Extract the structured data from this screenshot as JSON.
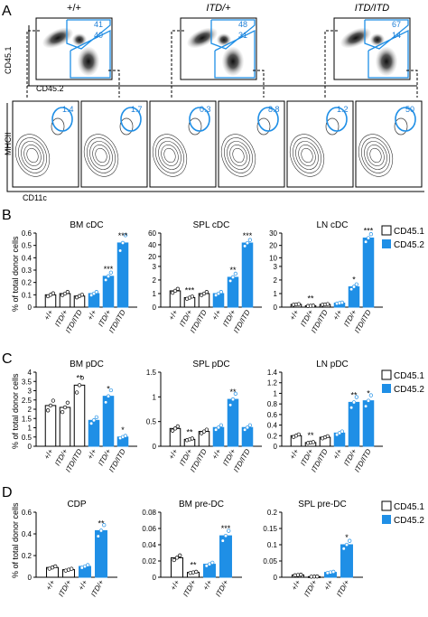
{
  "panel_letters": {
    "a": "A",
    "b": "B",
    "c": "C",
    "d": "D"
  },
  "flow": {
    "genotypes": [
      "+/+",
      "ITD/+",
      "ITD/ITD"
    ],
    "gate_values": [
      {
        "top": "41",
        "bottom": "40"
      },
      {
        "top": "48",
        "bottom": "31"
      },
      {
        "top": "67",
        "bottom": "14"
      }
    ],
    "cd45_xlabel": "CD45.2",
    "cd45_ylabel": "CD45.1",
    "cd11c_xlabel": "CD11c",
    "mhcii_ylabel": "MHCII",
    "cdc_gate_values": [
      "1.4",
      "1.7",
      "0.3",
      "8.8",
      "1.2",
      "50"
    ]
  },
  "legend": {
    "cd451": "CD45.1",
    "cd452": "CD45.2",
    "cd451_short": "CD45.1"
  },
  "ylabel": "% of total donor cells",
  "colors": {
    "cd452": "#1f8fe6",
    "cd451": "#ffffff",
    "edge": "#000000"
  },
  "chart_data": [
    {
      "type": "bar",
      "title": "BM cDC",
      "categories": [
        "+/+",
        "ITD/+",
        "ITD/ITD"
      ],
      "ylim": [
        0,
        0.6
      ],
      "yticks": [
        "0",
        "0.1",
        "0.2",
        "0.3",
        "0.4",
        "0.5",
        "0.6"
      ],
      "series": [
        {
          "name": "CD45.1",
          "values": [
            0.1,
            0.11,
            0.09
          ]
        },
        {
          "name": "CD45.2",
          "values": [
            0.11,
            0.25,
            0.52
          ]
        }
      ],
      "significance": {
        "CD45.2": [
          "",
          "***",
          "***"
        ]
      }
    },
    {
      "type": "bar",
      "title": "SPL cDC",
      "categories": [
        "+/+",
        "ITD/+",
        "ITD/ITD"
      ],
      "yticks": [
        "0",
        "1",
        "2",
        "3",
        "20",
        "40",
        "60"
      ],
      "series": [
        {
          "name": "CD45.1",
          "values": [
            1.2,
            0.7,
            1.0
          ]
        },
        {
          "name": "CD45.2",
          "values": [
            1.0,
            2.2,
            43
          ]
        }
      ],
      "significance": {
        "CD45.1": [
          "",
          "***",
          ""
        ],
        "CD45.2": [
          "",
          "**",
          "***"
        ]
      }
    },
    {
      "type": "bar",
      "title": "LN cDC",
      "categories": [
        "+/+",
        "ITD/+",
        "ITD/ITD"
      ],
      "yticks": [
        "0",
        "1",
        "2",
        "3",
        "10",
        "20",
        "30"
      ],
      "series": [
        {
          "name": "CD45.1",
          "values": [
            0.2,
            0.1,
            0.2
          ]
        },
        {
          "name": "CD45.2",
          "values": [
            0.3,
            1.5,
            26
          ]
        }
      ],
      "significance": {
        "CD45.1": [
          "",
          "**",
          ""
        ],
        "CD45.2": [
          "",
          "*",
          "***"
        ]
      }
    },
    {
      "type": "bar",
      "title": "BM pDC",
      "categories": [
        "+/+",
        "ITD/+",
        "ITD/ITD"
      ],
      "ylim": [
        0,
        4
      ],
      "yticks": [
        "0",
        "0.5",
        "1",
        "1.5",
        "2",
        "2.5",
        "3",
        "3.5",
        "4"
      ],
      "series": [
        {
          "name": "CD45.1",
          "values": [
            2.2,
            2.1,
            3.3
          ]
        },
        {
          "name": "CD45.2",
          "values": [
            1.4,
            2.7,
            0.5
          ]
        }
      ],
      "significance": {
        "CD45.1": [
          "",
          "",
          "**"
        ],
        "CD45.2": [
          "",
          "*",
          "*"
        ]
      }
    },
    {
      "type": "bar",
      "title": "SPL pDC",
      "categories": [
        "+/+",
        "ITD/+",
        "ITD/ITD"
      ],
      "ylim": [
        0,
        1.5
      ],
      "yticks": [
        "0",
        "0.5",
        "1",
        "1.5"
      ],
      "series": [
        {
          "name": "CD45.1",
          "values": [
            0.36,
            0.14,
            0.3
          ]
        },
        {
          "name": "CD45.2",
          "values": [
            0.38,
            0.95,
            0.38
          ]
        }
      ],
      "significance": {
        "CD45.1": [
          "",
          "**",
          ""
        ],
        "CD45.2": [
          "",
          "**",
          ""
        ]
      }
    },
    {
      "type": "bar",
      "title": "LN pDC",
      "categories": [
        "+/+",
        "ITD/+",
        "ITD/ITD"
      ],
      "ylim": [
        0,
        1.4
      ],
      "yticks": [
        "0",
        "0.2",
        "0.4",
        "0.6",
        "0.8",
        "1",
        "1.2",
        "1.4"
      ],
      "series": [
        {
          "name": "CD45.1",
          "values": [
            0.2,
            0.07,
            0.17
          ]
        },
        {
          "name": "CD45.2",
          "values": [
            0.25,
            0.83,
            0.86
          ]
        }
      ],
      "significance": {
        "CD45.1": [
          "",
          "**",
          ""
        ],
        "CD45.2": [
          "",
          "**",
          "*"
        ]
      }
    },
    {
      "type": "bar",
      "title": "CDP",
      "categories": [
        "+/+",
        "ITD/+"
      ],
      "ylim": [
        0,
        0.6
      ],
      "yticks": [
        "0",
        "0.2",
        "0.4",
        "0.6"
      ],
      "series": [
        {
          "name": "CD45.1",
          "values": [
            0.09,
            0.07
          ]
        },
        {
          "name": "CD45.2",
          "values": [
            0.1,
            0.43
          ]
        }
      ],
      "significance": {
        "CD45.2": [
          "",
          "**"
        ]
      }
    },
    {
      "type": "bar",
      "title": "BM pre-DC",
      "categories": [
        "+/+",
        "ITD/+"
      ],
      "ylim": [
        0,
        0.08
      ],
      "yticks": [
        "0",
        "0.02",
        "0.04",
        "0.06",
        "0.08"
      ],
      "series": [
        {
          "name": "CD45.1",
          "values": [
            0.024,
            0.006
          ]
        },
        {
          "name": "CD45.2",
          "values": [
            0.016,
            0.051
          ]
        }
      ],
      "significance": {
        "CD45.1": [
          "",
          "**"
        ],
        "CD45.2": [
          "",
          "***"
        ]
      }
    },
    {
      "type": "bar",
      "title": "SPL pre-DC",
      "categories": [
        "+/+",
        "ITD/+"
      ],
      "ylim": [
        0,
        0.2
      ],
      "yticks": [
        "0",
        "0.05",
        "0.1",
        "0.15",
        "0.2"
      ],
      "series": [
        {
          "name": "CD45.1",
          "values": [
            0.007,
            0.002
          ]
        },
        {
          "name": "CD45.2",
          "values": [
            0.015,
            0.1
          ]
        }
      ],
      "significance": {
        "CD45.2": [
          "",
          "*"
        ]
      }
    }
  ]
}
